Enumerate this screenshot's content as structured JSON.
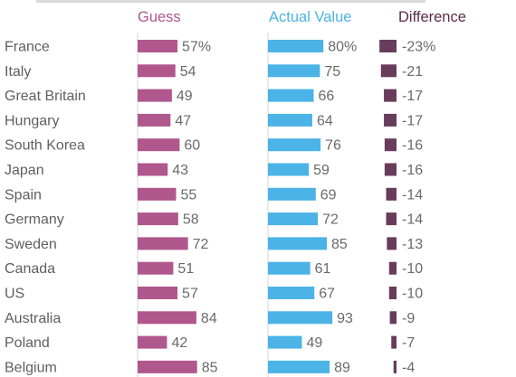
{
  "chart_data": {
    "type": "bar",
    "columns": [
      {
        "name": "Guess",
        "color": "#b0578d"
      },
      {
        "name": "Actual Value",
        "color": "#4bb3e6"
      },
      {
        "name": "Difference",
        "color": "#683c5b"
      }
    ],
    "header_colors": {
      "guess": "#b0578d",
      "actual": "#4bb3e6",
      "difference": "#5a2c4a"
    },
    "categories": [
      "France",
      "Italy",
      "Great Britain",
      "Hungary",
      "South Korea",
      "Japan",
      "Spain",
      "Germany",
      "Sweden",
      "Canada",
      "US",
      "Australia",
      "Poland",
      "Belgium"
    ],
    "series": [
      {
        "name": "Guess",
        "values": [
          57,
          54,
          49,
          47,
          60,
          43,
          55,
          58,
          72,
          51,
          57,
          84,
          42,
          85
        ],
        "labels": [
          "57%",
          "54",
          "49",
          "47",
          "60",
          "43",
          "55",
          "58",
          "72",
          "51",
          "57",
          "84",
          "42",
          "85"
        ]
      },
      {
        "name": "Actual Value",
        "values": [
          80,
          75,
          66,
          64,
          76,
          59,
          69,
          72,
          85,
          61,
          67,
          93,
          49,
          89
        ],
        "labels": [
          "80%",
          "75",
          "66",
          "64",
          "76",
          "59",
          "69",
          "72",
          "85",
          "61",
          "67",
          "93",
          "49",
          "89"
        ]
      },
      {
        "name": "Difference",
        "values": [
          -23,
          -21,
          -17,
          -17,
          -16,
          -16,
          -14,
          -14,
          -13,
          -10,
          -10,
          -9,
          -7,
          -4
        ],
        "labels": [
          "-23%",
          "-21",
          "-17",
          "-17",
          "-16",
          "-16",
          "-14",
          "-14",
          "-13",
          "-10",
          "-10",
          "-9",
          "-7",
          "-4"
        ]
      }
    ]
  }
}
